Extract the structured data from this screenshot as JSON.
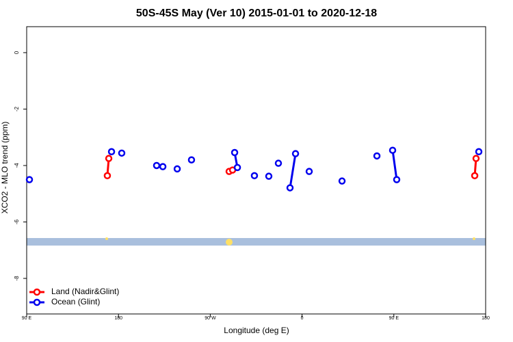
{
  "chart_data": {
    "type": "line",
    "title": "50S-45S May (Ver 10)   2015-01-01 to 2020-12-18",
    "x_label": "Longitude (deg E)",
    "y_label": "XCO2 - MLO trend (ppm)",
    "xlim": [
      90,
      540
    ],
    "ylim": [
      -9.26,
      0.92
    ],
    "xticks": [
      {
        "value": 90,
        "label": "90 E"
      },
      180,
      {
        "value": 270,
        "label": "90 W"
      },
      {
        "value": 360,
        "label": "0"
      },
      {
        "value": 450,
        "label": "90 E"
      },
      {
        "value": 540,
        "label": "180"
      }
    ],
    "yticks": [
      0,
      -2,
      -4,
      -6,
      -8
    ],
    "legend": "bottom-left",
    "series": [
      {
        "name": "Land (Nadir&Glint)",
        "color": "#ff0000",
        "x": [
          169.1,
          170.5,
          null,
          288.5,
          291.9,
          null,
          529.3,
          530.6
        ],
        "values": [
          -4.36,
          -3.75,
          null,
          -4.21,
          -4.16,
          null,
          -4.36,
          -3.75
        ]
      },
      {
        "name": "Ocean (Glint)",
        "color": "#0000ee",
        "x": [
          92.7,
          null,
          173.2,
          null,
          183.2,
          null,
          217.4,
          null,
          223.5,
          null,
          237.6,
          null,
          251.6,
          null,
          293.9,
          296.6,
          null,
          313.3,
          null,
          327.4,
          null,
          336.8,
          null,
          348.2,
          353.6,
          null,
          367.0,
          null,
          399.2,
          null,
          433.4,
          null,
          448.8,
          452.8,
          null,
          533.3
        ],
        "values": [
          -4.5,
          null,
          -3.51,
          null,
          -3.56,
          null,
          -4.0,
          null,
          -4.04,
          null,
          -4.12,
          null,
          -3.8,
          null,
          -3.54,
          -4.07,
          null,
          -4.36,
          null,
          -4.38,
          null,
          -3.92,
          null,
          -4.79,
          -3.58,
          null,
          -4.21,
          null,
          -4.55,
          null,
          -3.66,
          null,
          -3.46,
          -4.5,
          null,
          -3.51
        ]
      }
    ]
  }
}
